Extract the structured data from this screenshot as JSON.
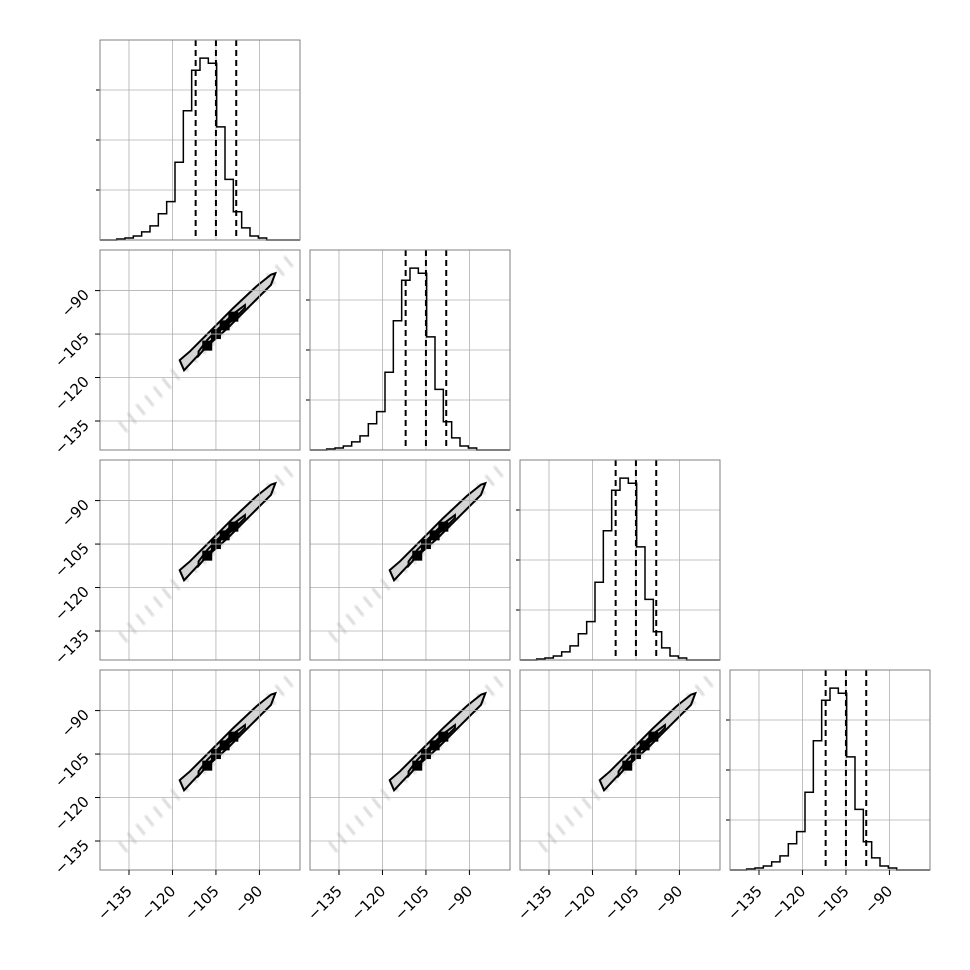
{
  "chart_data": {
    "type": "corner",
    "n_params": 4,
    "range": [
      -145,
      -76
    ],
    "ticks": [
      -135,
      -120,
      -105,
      -90
    ],
    "tick_labels": [
      "−135",
      "−120",
      "−105",
      "−90"
    ],
    "grid": true,
    "quantiles": [
      -112,
      -105,
      -98
    ],
    "histograms": [
      {
        "param": 1,
        "bin_edges": [
          -145,
          -142.125,
          -139.25,
          -136.375,
          -133.5,
          -130.625,
          -127.75,
          -124.875,
          -122,
          -119.125,
          -116.25,
          -113.375,
          -110.5,
          -107.625,
          -104.75,
          -101.875,
          -99,
          -96.125,
          -93.25,
          -90.375,
          -87.5,
          -84.625,
          -81.75,
          -78.875,
          -76
        ],
        "counts": [
          0,
          0,
          1,
          2,
          4,
          8,
          14,
          26,
          38,
          77,
          128,
          168,
          180,
          175,
          112,
          60,
          28,
          12,
          4,
          2,
          0,
          0,
          0,
          0
        ]
      },
      {
        "param": 2,
        "bin_edges": [
          -145,
          -142.125,
          -139.25,
          -136.375,
          -133.5,
          -130.625,
          -127.75,
          -124.875,
          -122,
          -119.125,
          -116.25,
          -113.375,
          -110.5,
          -107.625,
          -104.75,
          -101.875,
          -99,
          -96.125,
          -93.25,
          -90.375,
          -87.5,
          -84.625,
          -81.75,
          -78.875,
          -76
        ],
        "counts": [
          0,
          0,
          1,
          2,
          4,
          8,
          14,
          26,
          38,
          77,
          128,
          168,
          180,
          175,
          112,
          60,
          28,
          12,
          4,
          2,
          0,
          0,
          0,
          0
        ]
      },
      {
        "param": 3,
        "bin_edges": [
          -145,
          -142.125,
          -139.25,
          -136.375,
          -133.5,
          -130.625,
          -127.75,
          -124.875,
          -122,
          -119.125,
          -116.25,
          -113.375,
          -110.5,
          -107.625,
          -104.75,
          -101.875,
          -99,
          -96.125,
          -93.25,
          -90.375,
          -87.5,
          -84.625,
          -81.75,
          -78.875,
          -76
        ],
        "counts": [
          0,
          0,
          1,
          2,
          4,
          8,
          14,
          26,
          38,
          77,
          128,
          168,
          180,
          175,
          112,
          60,
          28,
          12,
          4,
          2,
          0,
          0,
          0,
          0
        ]
      },
      {
        "param": 4,
        "bin_edges": [
          -145,
          -142.125,
          -139.25,
          -136.375,
          -133.5,
          -130.625,
          -127.75,
          -124.875,
          -122,
          -119.125,
          -116.25,
          -113.375,
          -110.5,
          -107.625,
          -104.75,
          -101.875,
          -99,
          -96.125,
          -93.25,
          -90.375,
          -87.5,
          -84.625,
          -81.75,
          -78.875,
          -76
        ],
        "counts": [
          0,
          0,
          1,
          2,
          4,
          8,
          14,
          26,
          38,
          77,
          128,
          168,
          180,
          175,
          112,
          60,
          28,
          12,
          4,
          2,
          0,
          0,
          0,
          0
        ]
      }
    ],
    "pairs": [
      {
        "x_param": 1,
        "y_param": 2
      },
      {
        "x_param": 1,
        "y_param": 3
      },
      {
        "x_param": 2,
        "y_param": 3
      },
      {
        "x_param": 1,
        "y_param": 4
      },
      {
        "x_param": 2,
        "y_param": 4
      },
      {
        "x_param": 3,
        "y_param": 4
      }
    ],
    "scatter_sample": [
      [
        -80,
        -80
      ],
      [
        -83,
        -83
      ],
      [
        -86,
        -86
      ],
      [
        -89,
        -89
      ],
      [
        -92,
        -92
      ],
      [
        -95,
        -95
      ],
      [
        -98,
        -98
      ],
      [
        -101,
        -101
      ],
      [
        -104,
        -104
      ],
      [
        -107,
        -107
      ],
      [
        -110,
        -110
      ],
      [
        -113,
        -113
      ],
      [
        -116,
        -116
      ],
      [
        -119,
        -119
      ],
      [
        -122,
        -122
      ],
      [
        -125,
        -125
      ],
      [
        -128,
        -128
      ],
      [
        -131,
        -131
      ],
      [
        -134,
        -134
      ],
      [
        -137,
        -137
      ]
    ],
    "contour_levels": [
      {
        "points": [
          [
            -84.5,
            -84
          ],
          [
            -86,
            -88
          ],
          [
            -93,
            -95
          ],
          [
            -101,
            -103
          ],
          [
            -109,
            -110
          ],
          [
            -116,
            -117.5
          ],
          [
            -117.5,
            -114
          ],
          [
            -114,
            -111
          ],
          [
            -107,
            -104
          ],
          [
            -99,
            -96
          ],
          [
            -91,
            -88.5
          ],
          [
            -86,
            -84.5
          ]
        ]
      },
      {
        "points": [
          [
            -95,
            -96
          ],
          [
            -99,
            -100
          ],
          [
            -104,
            -104
          ],
          [
            -108,
            -109
          ],
          [
            -111,
            -112.5
          ],
          [
            -111,
            -111
          ],
          [
            -108,
            -107
          ],
          [
            -104,
            -103
          ],
          [
            -99,
            -98
          ],
          [
            -95,
            -95
          ]
        ]
      }
    ]
  }
}
